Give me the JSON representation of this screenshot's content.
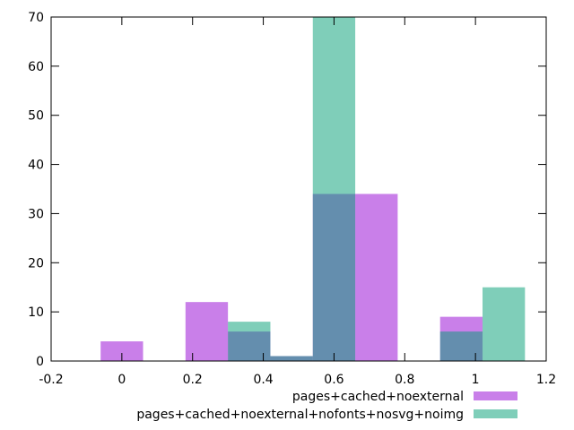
{
  "chart_data": {
    "type": "bar",
    "title": "",
    "xlabel": "",
    "ylabel": "",
    "xlim": [
      -0.2,
      1.2
    ],
    "ylim": [
      0,
      70
    ],
    "xticks": [
      -0.2,
      0,
      0.2,
      0.4,
      0.6,
      0.8,
      1,
      1.2
    ],
    "xtick_labels": [
      "-0.2",
      "0",
      "0.2",
      "0.4",
      "0.6",
      "0.8",
      "1",
      "1.2"
    ],
    "yticks": [
      0,
      10,
      20,
      30,
      40,
      50,
      60,
      70
    ],
    "ytick_labels": [
      "0",
      "10",
      "20",
      "30",
      "40",
      "50",
      "60",
      "70"
    ],
    "legend_position": "bottom-right",
    "series": [
      {
        "name": "pages+cached+noexternal",
        "color": "#9400d3",
        "opacity": 0.5,
        "bars": [
          {
            "x0": -0.06,
            "x1": 0.06,
            "value": 4
          },
          {
            "x0": 0.18,
            "x1": 0.3,
            "value": 12
          },
          {
            "x0": 0.3,
            "x1": 0.42,
            "value": 6
          },
          {
            "x0": 0.42,
            "x1": 0.54,
            "value": 1
          },
          {
            "x0": 0.54,
            "x1": 0.66,
            "value": 34
          },
          {
            "x0": 0.66,
            "x1": 0.78,
            "value": 34
          },
          {
            "x0": 0.9,
            "x1": 1.02,
            "value": 9
          }
        ]
      },
      {
        "name": "pages+cached+noexternal+nofonts+nosvg+noimg",
        "color": "#009e73",
        "opacity": 0.5,
        "bars": [
          {
            "x0": 0.3,
            "x1": 0.42,
            "value": 8
          },
          {
            "x0": 0.42,
            "x1": 0.54,
            "value": 1
          },
          {
            "x0": 0.54,
            "x1": 0.66,
            "value": 70
          },
          {
            "x0": 0.9,
            "x1": 1.02,
            "value": 6
          },
          {
            "x0": 1.02,
            "x1": 1.14,
            "value": 15
          }
        ]
      }
    ]
  }
}
